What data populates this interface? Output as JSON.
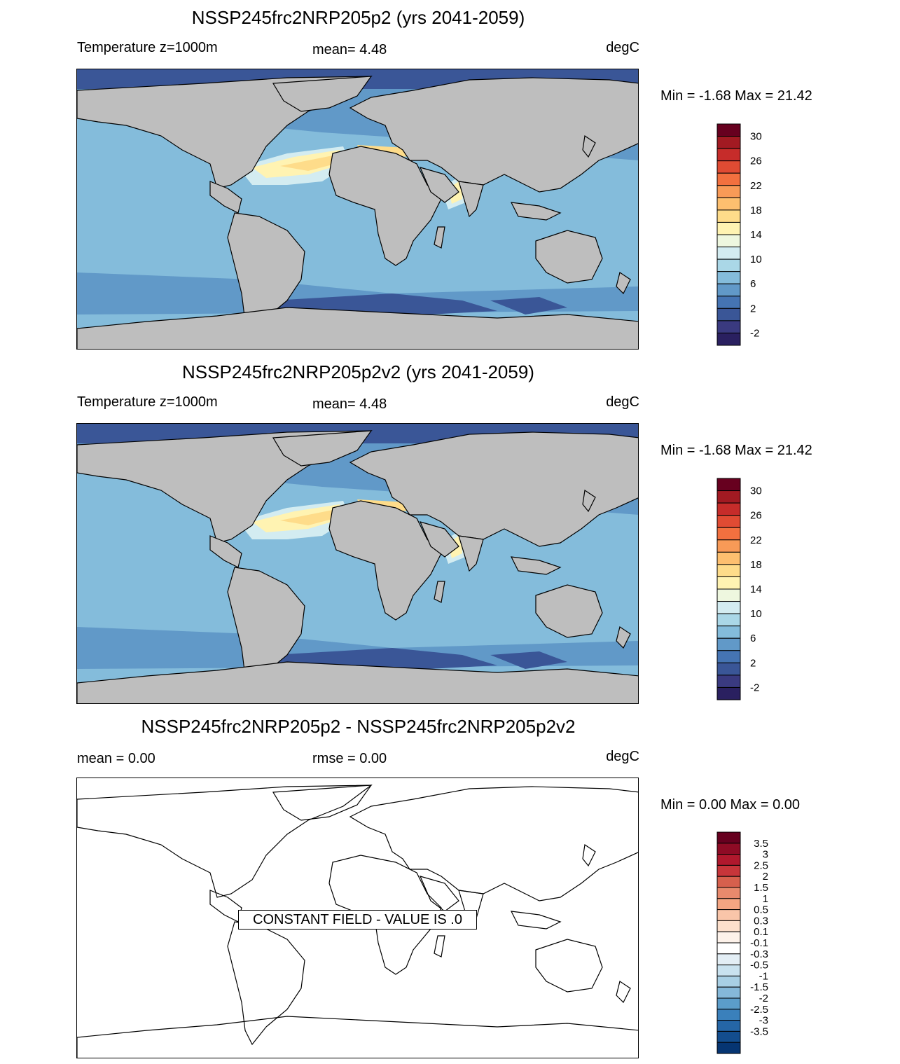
{
  "panels": [
    {
      "title": "NSSP245frc2NRP205p2 (yrs 2041-2059)",
      "left_label": "Temperature z=1000m",
      "mid_label": "mean=   4.48",
      "units": "degC",
      "minmax": "Min =  -1.68 Max =  21.42",
      "colorbar": {
        "labels": [
          "30",
          "26",
          "22",
          "18",
          "14",
          "10",
          "6",
          "2",
          "-2"
        ],
        "colors": [
          "#67001f",
          "#a21a22",
          "#c62c2a",
          "#e04b33",
          "#f2703f",
          "#f89a57",
          "#fdbf6f",
          "#fedc8a",
          "#fff3b2",
          "#eef7df",
          "#d3ecf1",
          "#aad7e7",
          "#84bcdb",
          "#6199c8",
          "#4574b3",
          "#3a5697",
          "#3a3a80",
          "#2a2060"
        ],
        "label_positions": [
          1,
          3,
          5,
          7,
          9,
          11,
          13,
          15,
          17
        ]
      }
    },
    {
      "title": "NSSP245frc2NRP205p2v2 (yrs 2041-2059)",
      "left_label": "Temperature z=1000m",
      "mid_label": "mean=   4.48",
      "units": "degC",
      "minmax": "Min =  -1.68 Max =  21.42",
      "colorbar": {
        "labels": [
          "30",
          "26",
          "22",
          "18",
          "14",
          "10",
          "6",
          "2",
          "-2"
        ],
        "colors": [
          "#67001f",
          "#a21a22",
          "#c62c2a",
          "#e04b33",
          "#f2703f",
          "#f89a57",
          "#fdbf6f",
          "#fedc8a",
          "#fff3b2",
          "#eef7df",
          "#d3ecf1",
          "#aad7e7",
          "#84bcdb",
          "#6199c8",
          "#4574b3",
          "#3a5697",
          "#3a3a80",
          "#2a2060"
        ],
        "label_positions": [
          1,
          3,
          5,
          7,
          9,
          11,
          13,
          15,
          17
        ]
      }
    },
    {
      "title": "NSSP245frc2NRP205p2 - NSSP245frc2NRP205p2v2",
      "left_label": "mean =    0.00",
      "mid_label": "rmse =    0.00",
      "units": "degC",
      "minmax": "Min =   0.00 Max =    0.00",
      "constant_field": "CONSTANT FIELD - VALUE IS .0",
      "colorbar": {
        "labels": [
          "3.5",
          "3",
          "2.5",
          "2",
          "1.5",
          "1",
          "0.5",
          "0.3",
          "0.1",
          "-0.1",
          "-0.3",
          "-0.5",
          "-1",
          "-1.5",
          "-2",
          "-2.5",
          "-3",
          "-3.5"
        ],
        "colors": [
          "#67001f",
          "#8e0b25",
          "#b0182d",
          "#c7353a",
          "#d6604d",
          "#e88a6d",
          "#f4a582",
          "#f9c5a9",
          "#fde0cc",
          "#fdf2ea",
          "#ffffff",
          "#e3eef5",
          "#c9e2ef",
          "#a8cfe4",
          "#85b8d9",
          "#5b9dca",
          "#3a80bb",
          "#2566a6",
          "#134d8e",
          "#063572"
        ],
        "label_positions": [
          1,
          2,
          3,
          4,
          5,
          6,
          7,
          8,
          9,
          10,
          11,
          12,
          13,
          14,
          15,
          16,
          17,
          18
        ]
      }
    }
  ],
  "map_colors": {
    "land": "#bebebe",
    "ocean_deep": "#6199c8",
    "ocean_mid": "#84bcdb",
    "ocean_light": "#aad7e7",
    "ocean_pale": "#d3ecf1",
    "warm": "#fff3b2",
    "warmer": "#fedc8a",
    "cold": "#3a5697",
    "polar": "#4574b3"
  }
}
